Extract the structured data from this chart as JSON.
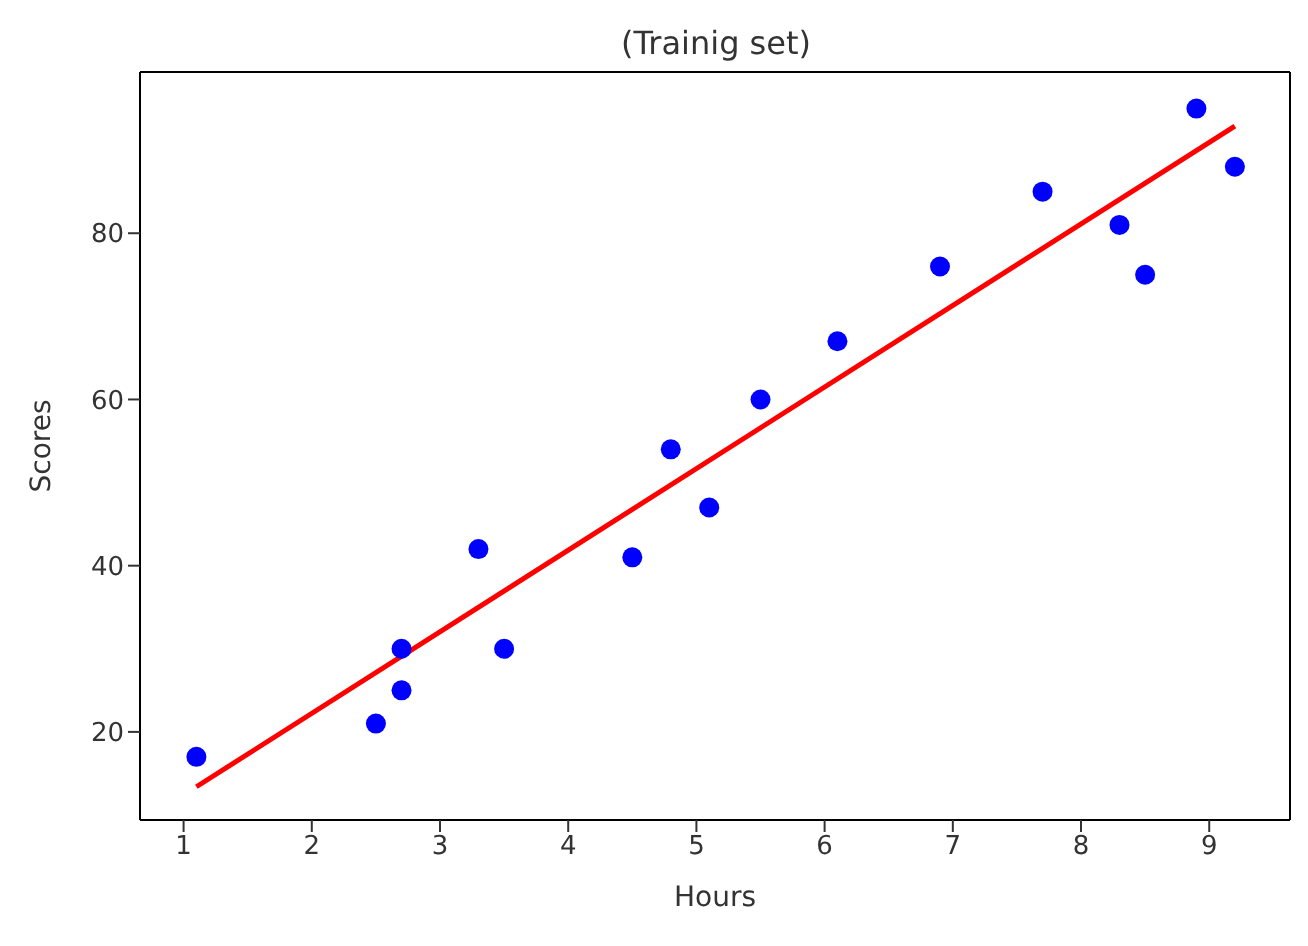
{
  "chart_data": {
    "type": "scatter",
    "title": "(Trainig set)",
    "xlabel": "Hours",
    "ylabel": "Scores",
    "xlim": [
      0.66,
      9.63
    ],
    "xticks": [
      1,
      2,
      3,
      4,
      5,
      6,
      7,
      8,
      9
    ],
    "ylim": [
      9.4,
      99.4
    ],
    "yticks": [
      20,
      40,
      60,
      80
    ],
    "series": [
      {
        "color": "#0000ff",
        "marker": "circle",
        "x": [
          1.1,
          2.5,
          2.7,
          2.7,
          3.3,
          3.5,
          4.5,
          4.8,
          5.1,
          5.5,
          6.1,
          6.9,
          7.7,
          8.3,
          8.5,
          8.9,
          9.2
        ],
        "values": [
          17,
          21,
          30,
          25,
          42,
          30,
          41,
          54,
          47,
          60,
          67,
          76,
          85,
          81,
          75,
          95,
          88
        ]
      },
      {
        "type": "line",
        "color": "#ff0000",
        "marker": "none",
        "line_style": "solid",
        "x": [
          1.1,
          9.2
        ],
        "values": [
          13.4,
          92.9
        ]
      }
    ]
  }
}
